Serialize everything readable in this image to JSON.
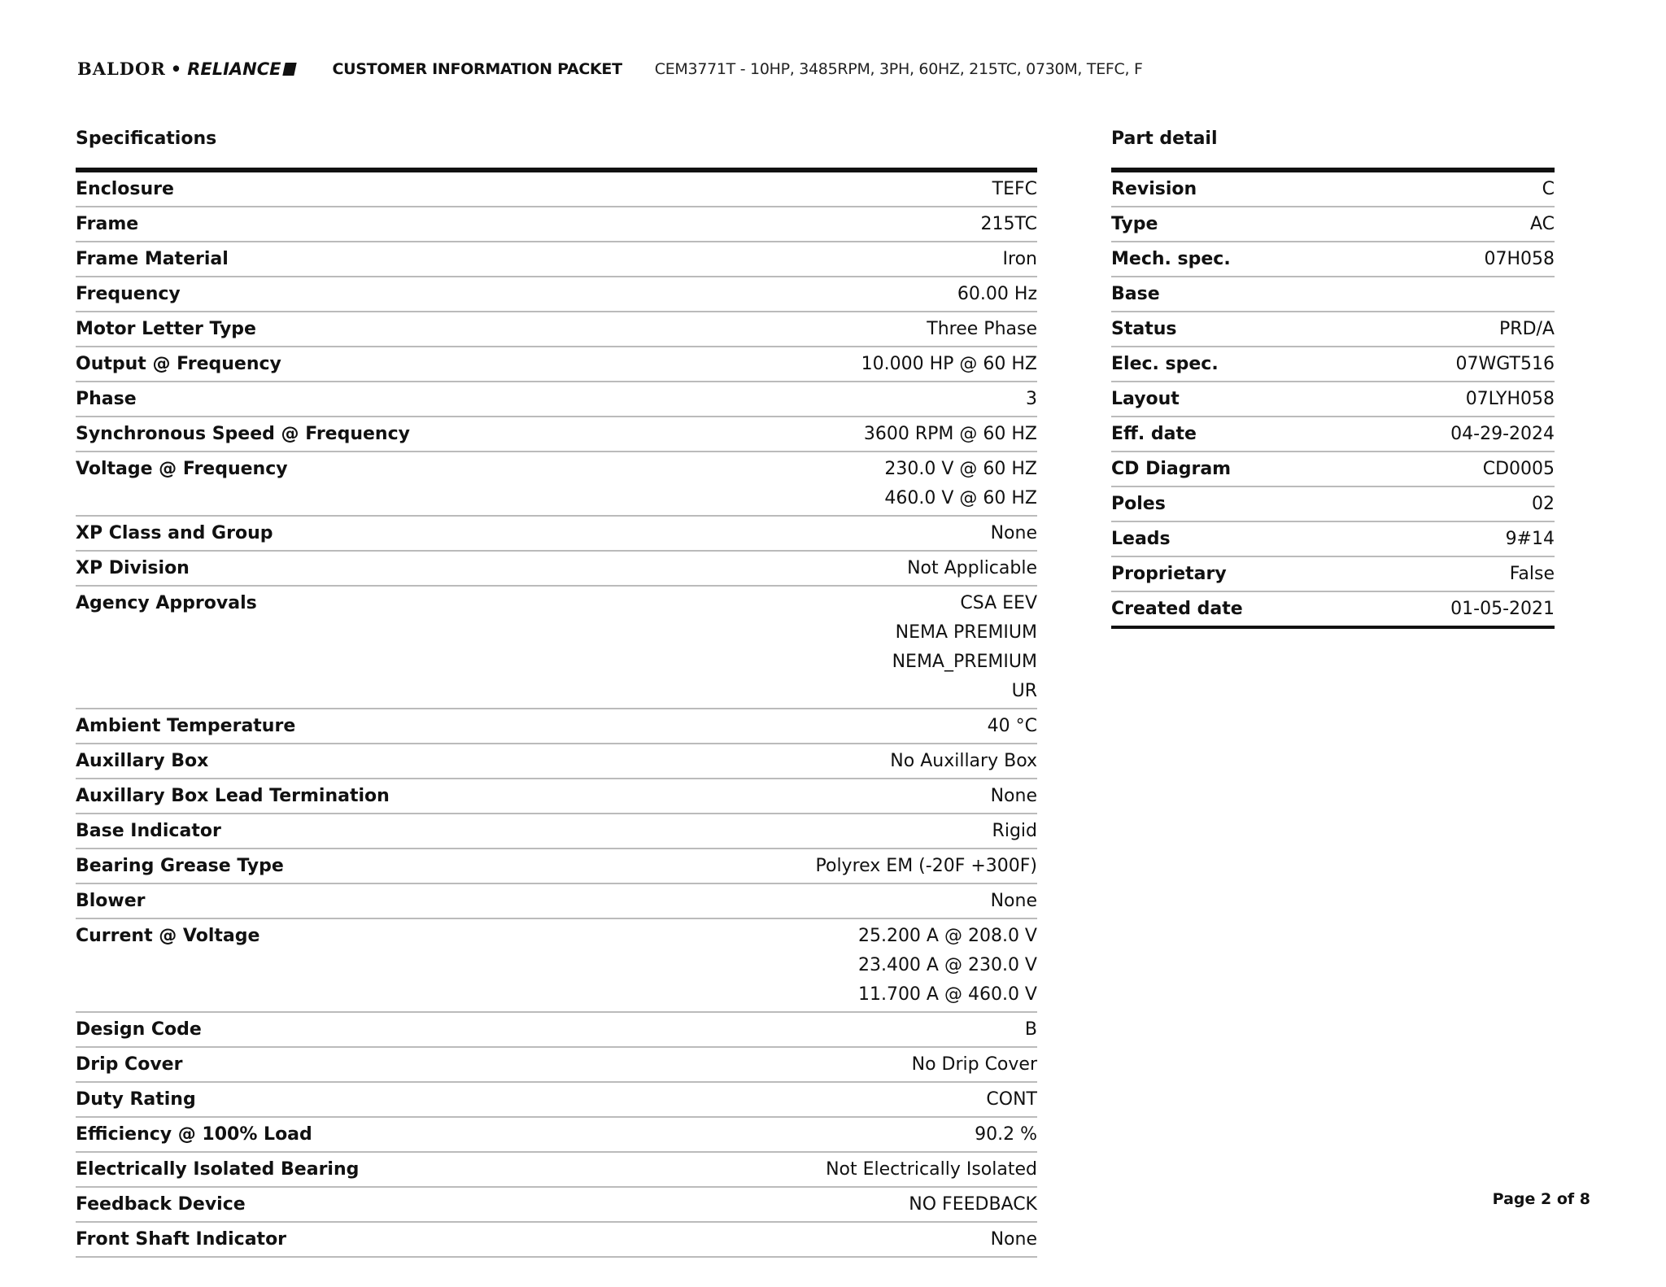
{
  "header": {
    "brand": {
      "left": "BALDOR",
      "sep": "•",
      "right": "RELIANCE"
    },
    "packet_title": "CUSTOMER INFORMATION PACKET",
    "description": "CEM3771T - 10HP, 3485RPM, 3PH, 60HZ, 215TC, 0730M, TEFC, F"
  },
  "specifications": {
    "title": "Specifications",
    "rows": [
      {
        "label": "Enclosure",
        "values": [
          "TEFC"
        ]
      },
      {
        "label": "Frame",
        "values": [
          "215TC"
        ]
      },
      {
        "label": "Frame Material",
        "values": [
          "Iron"
        ]
      },
      {
        "label": "Frequency",
        "values": [
          "60.00 Hz"
        ]
      },
      {
        "label": "Motor Letter Type",
        "values": [
          "Three Phase"
        ]
      },
      {
        "label": "Output @ Frequency",
        "values": [
          "10.000 HP @ 60 HZ"
        ]
      },
      {
        "label": "Phase",
        "values": [
          "3"
        ]
      },
      {
        "label": "Synchronous Speed @ Frequency",
        "values": [
          "3600 RPM @ 60 HZ"
        ]
      },
      {
        "label": "Voltage @ Frequency",
        "values": [
          "230.0 V @ 60 HZ",
          "460.0 V @ 60 HZ"
        ]
      },
      {
        "label": "XP Class and Group",
        "values": [
          "None"
        ]
      },
      {
        "label": "XP Division",
        "values": [
          "Not Applicable"
        ]
      },
      {
        "label": "Agency Approvals",
        "values": [
          "CSA EEV",
          "NEMA PREMIUM",
          "NEMA_PREMIUM",
          "UR"
        ]
      },
      {
        "label": "Ambient Temperature",
        "values": [
          "40 °C"
        ]
      },
      {
        "label": "Auxillary Box",
        "values": [
          "No Auxillary Box"
        ]
      },
      {
        "label": "Auxillary Box Lead Termination",
        "values": [
          "None"
        ]
      },
      {
        "label": "Base Indicator",
        "values": [
          "Rigid"
        ]
      },
      {
        "label": "Bearing Grease Type",
        "values": [
          "Polyrex EM (-20F +300F)"
        ]
      },
      {
        "label": "Blower",
        "values": [
          "None"
        ]
      },
      {
        "label": "Current @ Voltage",
        "values": [
          "25.200 A @ 208.0 V",
          "23.400 A @ 230.0 V",
          "11.700 A @ 460.0 V"
        ]
      },
      {
        "label": "Design Code",
        "values": [
          "B"
        ]
      },
      {
        "label": "Drip Cover",
        "values": [
          "No Drip Cover"
        ]
      },
      {
        "label": "Duty Rating",
        "values": [
          "CONT"
        ]
      },
      {
        "label": "Efficiency @ 100% Load",
        "values": [
          "90.2 %"
        ]
      },
      {
        "label": "Electrically Isolated Bearing",
        "values": [
          "Not Electrically Isolated"
        ]
      },
      {
        "label": "Feedback Device",
        "values": [
          "NO FEEDBACK"
        ]
      },
      {
        "label": "Front Shaft Indicator",
        "values": [
          "None"
        ]
      }
    ]
  },
  "part_detail": {
    "title": "Part detail",
    "rows": [
      {
        "label": "Revision",
        "values": [
          "C"
        ]
      },
      {
        "label": "Type",
        "values": [
          "AC"
        ]
      },
      {
        "label": "Mech. spec.",
        "values": [
          "07H058"
        ]
      },
      {
        "label": "Base",
        "values": [
          ""
        ]
      },
      {
        "label": "Status",
        "values": [
          "PRD/A"
        ]
      },
      {
        "label": "Elec. spec.",
        "values": [
          "07WGT516"
        ]
      },
      {
        "label": "Layout",
        "values": [
          "07LYH058"
        ]
      },
      {
        "label": "Eff. date",
        "values": [
          "04-29-2024"
        ]
      },
      {
        "label": "CD Diagram",
        "values": [
          "CD0005"
        ]
      },
      {
        "label": "Poles",
        "values": [
          "02"
        ]
      },
      {
        "label": "Leads",
        "values": [
          "9#14"
        ]
      },
      {
        "label": "Proprietary",
        "values": [
          "False"
        ]
      },
      {
        "label": "Created date",
        "values": [
          "01-05-2021"
        ]
      }
    ]
  },
  "footer": {
    "page": "Page 2 of 8"
  }
}
